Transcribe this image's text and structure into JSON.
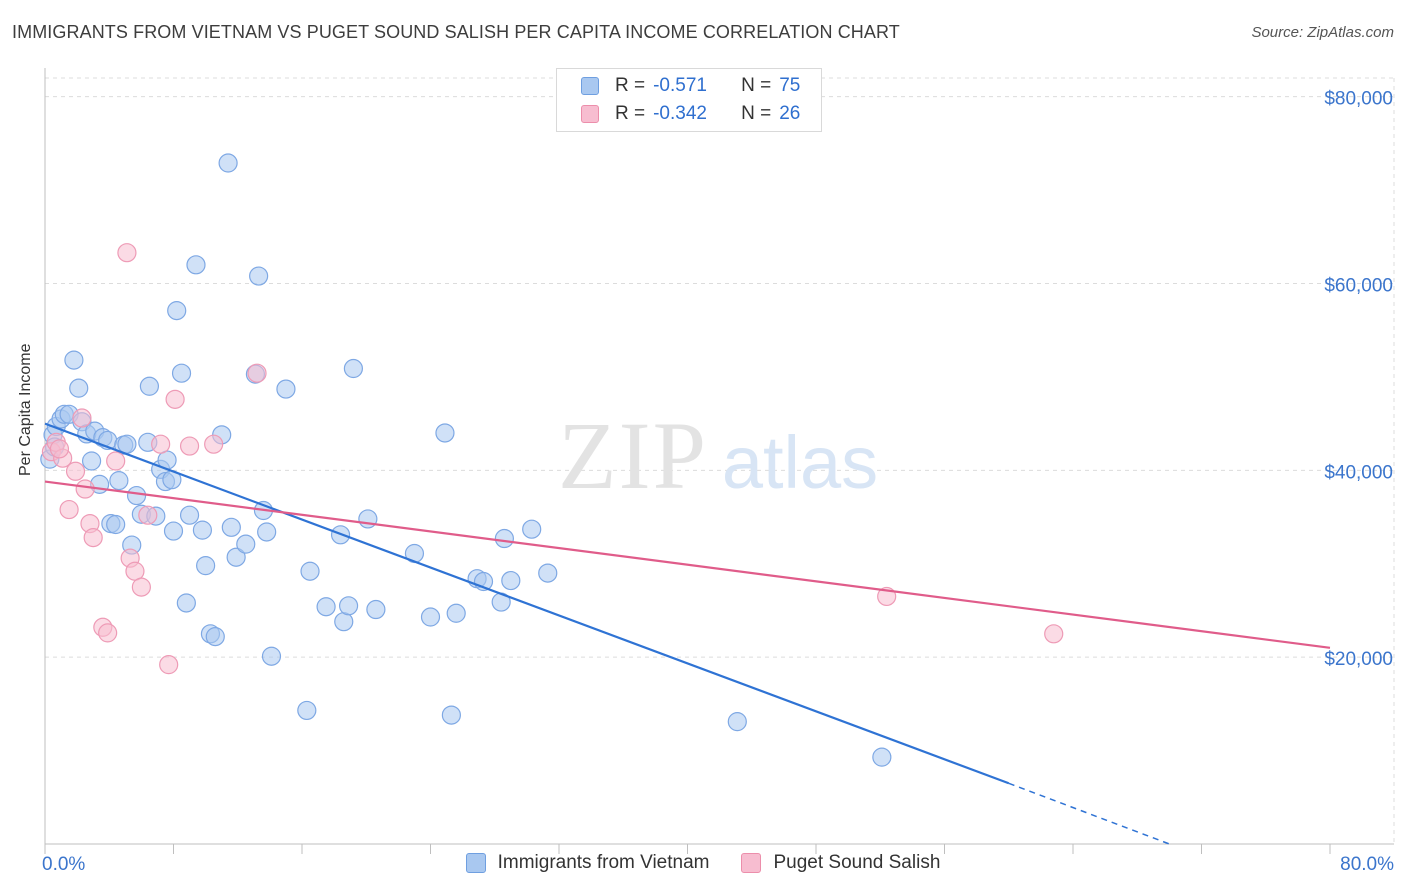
{
  "header": {
    "title": "IMMIGRANTS FROM VIETNAM VS PUGET SOUND SALISH PER CAPITA INCOME CORRELATION CHART",
    "source": "Source: ZipAtlas.com"
  },
  "watermark": {
    "zip": "ZIP",
    "atlas": "atlas"
  },
  "stats": [
    {
      "r_label": "R =",
      "r_value": "-0.571",
      "n_label": "N =",
      "n_value": "75",
      "color": "#a9c8f0",
      "border": "#6f9fe0"
    },
    {
      "r_label": "R =",
      "r_value": "-0.342",
      "n_label": "N =",
      "n_value": "26",
      "color": "#f7bdd0",
      "border": "#ec8eab"
    }
  ],
  "legend": [
    {
      "label": "Immigrants from Vietnam",
      "color": "#a9c8f0",
      "border": "#6f9fe0"
    },
    {
      "label": "Puget Sound Salish",
      "color": "#f7bdd0",
      "border": "#ec8eab"
    }
  ],
  "chart_data": {
    "type": "scatter",
    "title": "IMMIGRANTS FROM VIETNAM VS PUGET SOUND SALISH PER CAPITA INCOME CORRELATION CHART",
    "xlabel": "",
    "ylabel": "Per Capita Income",
    "xlim": [
      0,
      80
    ],
    "ylim": [
      0,
      82000
    ],
    "x_tick_labels": [
      "0.0%",
      "80.0%"
    ],
    "y_ticks": [
      20000,
      40000,
      60000,
      80000
    ],
    "y_tick_labels": [
      "$20,000",
      "$40,000",
      "$60,000",
      "$80,000"
    ],
    "grid": true,
    "legend_position": "bottom-center",
    "series": [
      {
        "name": "Immigrants from Vietnam",
        "color": "#2f73d4",
        "fill": "#a9c8f0",
        "trend": {
          "x0": 0,
          "y0": 45000,
          "x1": 60,
          "y1": 6500,
          "dashed_to_x": 70,
          "dashed_to_y": 0
        },
        "points": [
          [
            0.3,
            41200
          ],
          [
            0.5,
            43800
          ],
          [
            0.7,
            44700
          ],
          [
            1.0,
            45500
          ],
          [
            1.2,
            46000
          ],
          [
            1.5,
            46000
          ],
          [
            1.8,
            51800
          ],
          [
            2.1,
            48800
          ],
          [
            2.3,
            45200
          ],
          [
            2.6,
            43900
          ],
          [
            2.9,
            41000
          ],
          [
            3.1,
            44200
          ],
          [
            3.4,
            38500
          ],
          [
            3.6,
            43500
          ],
          [
            3.9,
            43200
          ],
          [
            4.1,
            34300
          ],
          [
            4.4,
            34200
          ],
          [
            4.6,
            38900
          ],
          [
            4.9,
            42700
          ],
          [
            5.1,
            42800
          ],
          [
            5.4,
            32000
          ],
          [
            5.7,
            37300
          ],
          [
            6.0,
            35300
          ],
          [
            6.4,
            43000
          ],
          [
            6.5,
            49000
          ],
          [
            6.9,
            35100
          ],
          [
            7.2,
            40100
          ],
          [
            7.5,
            38800
          ],
          [
            7.6,
            41100
          ],
          [
            7.9,
            39000
          ],
          [
            8.0,
            33500
          ],
          [
            8.2,
            57100
          ],
          [
            8.5,
            50400
          ],
          [
            8.8,
            25800
          ],
          [
            9.0,
            35200
          ],
          [
            9.4,
            62000
          ],
          [
            9.8,
            33600
          ],
          [
            10.0,
            29800
          ],
          [
            10.3,
            22500
          ],
          [
            10.6,
            22200
          ],
          [
            11.0,
            43800
          ],
          [
            11.4,
            72900
          ],
          [
            11.6,
            33900
          ],
          [
            11.9,
            30700
          ],
          [
            12.5,
            32100
          ],
          [
            13.1,
            50300
          ],
          [
            13.3,
            60800
          ],
          [
            13.6,
            35700
          ],
          [
            13.8,
            33400
          ],
          [
            14.1,
            20100
          ],
          [
            15.0,
            48700
          ],
          [
            16.3,
            14300
          ],
          [
            16.5,
            29200
          ],
          [
            17.5,
            25400
          ],
          [
            18.4,
            33100
          ],
          [
            18.6,
            23800
          ],
          [
            18.9,
            25500
          ],
          [
            19.2,
            50900
          ],
          [
            20.1,
            34800
          ],
          [
            20.6,
            25100
          ],
          [
            23.0,
            31100
          ],
          [
            24.0,
            24300
          ],
          [
            24.9,
            44000
          ],
          [
            25.3,
            13800
          ],
          [
            25.6,
            24700
          ],
          [
            26.9,
            28400
          ],
          [
            27.3,
            28100
          ],
          [
            28.4,
            25900
          ],
          [
            28.6,
            32700
          ],
          [
            29.0,
            28200
          ],
          [
            30.3,
            33700
          ],
          [
            31.3,
            29000
          ],
          [
            43.1,
            13100
          ],
          [
            52.1,
            9300
          ],
          [
            0.6,
            42500
          ]
        ]
      },
      {
        "name": "Puget Sound Salish",
        "color": "#e05c8a",
        "fill": "#f7bdd0",
        "trend": {
          "x0": 0,
          "y0": 38800,
          "x1": 80,
          "y1": 21000
        },
        "points": [
          [
            0.4,
            42000
          ],
          [
            0.7,
            43000
          ],
          [
            1.1,
            41300
          ],
          [
            1.5,
            35800
          ],
          [
            1.9,
            39900
          ],
          [
            2.3,
            45600
          ],
          [
            2.5,
            38000
          ],
          [
            2.8,
            34300
          ],
          [
            3.0,
            32800
          ],
          [
            3.6,
            23200
          ],
          [
            3.9,
            22600
          ],
          [
            4.4,
            41000
          ],
          [
            5.1,
            63300
          ],
          [
            5.3,
            30600
          ],
          [
            5.6,
            29200
          ],
          [
            6.0,
            27500
          ],
          [
            6.4,
            35200
          ],
          [
            7.2,
            42800
          ],
          [
            7.7,
            19200
          ],
          [
            8.1,
            47600
          ],
          [
            9.0,
            42600
          ],
          [
            10.5,
            42800
          ],
          [
            13.2,
            50400
          ],
          [
            52.4,
            26500
          ],
          [
            62.8,
            22500
          ],
          [
            0.9,
            42300
          ]
        ]
      }
    ]
  }
}
